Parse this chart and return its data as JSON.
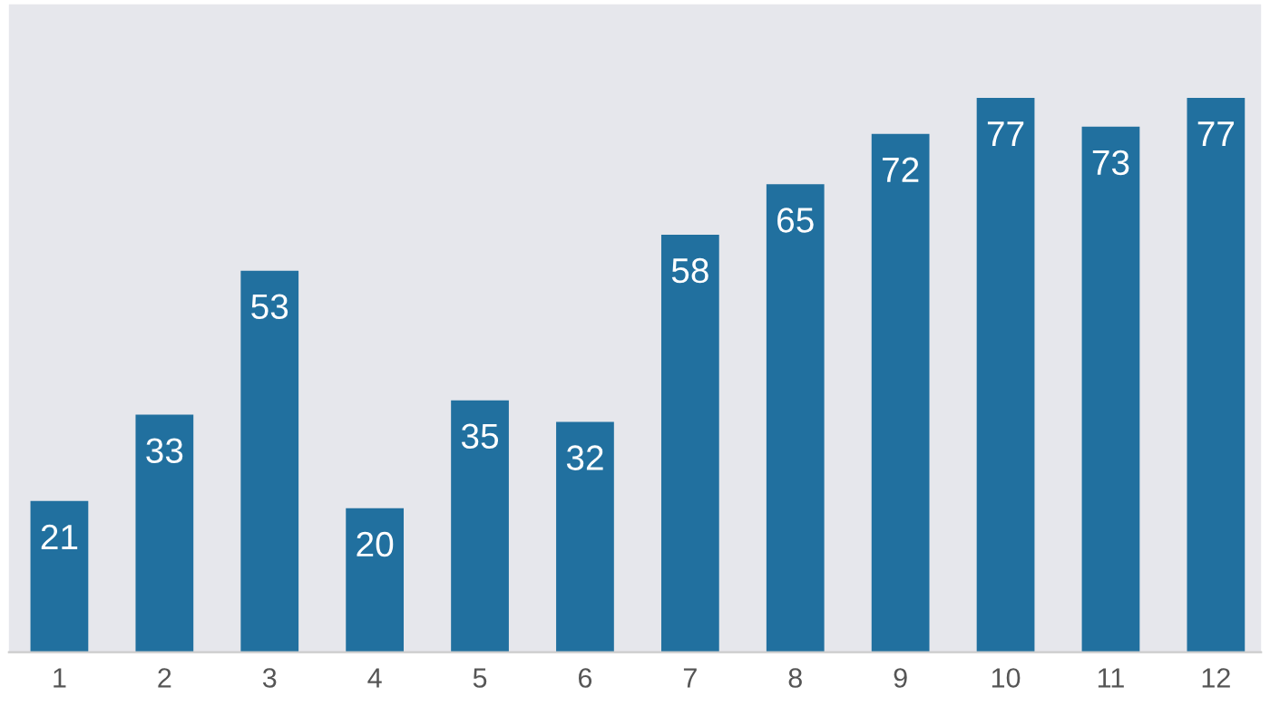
{
  "chart_data": {
    "type": "bar",
    "categories": [
      "1",
      "2",
      "3",
      "4",
      "5",
      "6",
      "7",
      "8",
      "9",
      "10",
      "11",
      "12"
    ],
    "values": [
      21,
      33,
      53,
      20,
      35,
      32,
      58,
      65,
      72,
      77,
      73,
      77
    ],
    "color": "#21709f",
    "ylim": [
      0,
      90
    ],
    "data_labels": true,
    "grid": false,
    "legend": false,
    "tick_labels": "x"
  }
}
